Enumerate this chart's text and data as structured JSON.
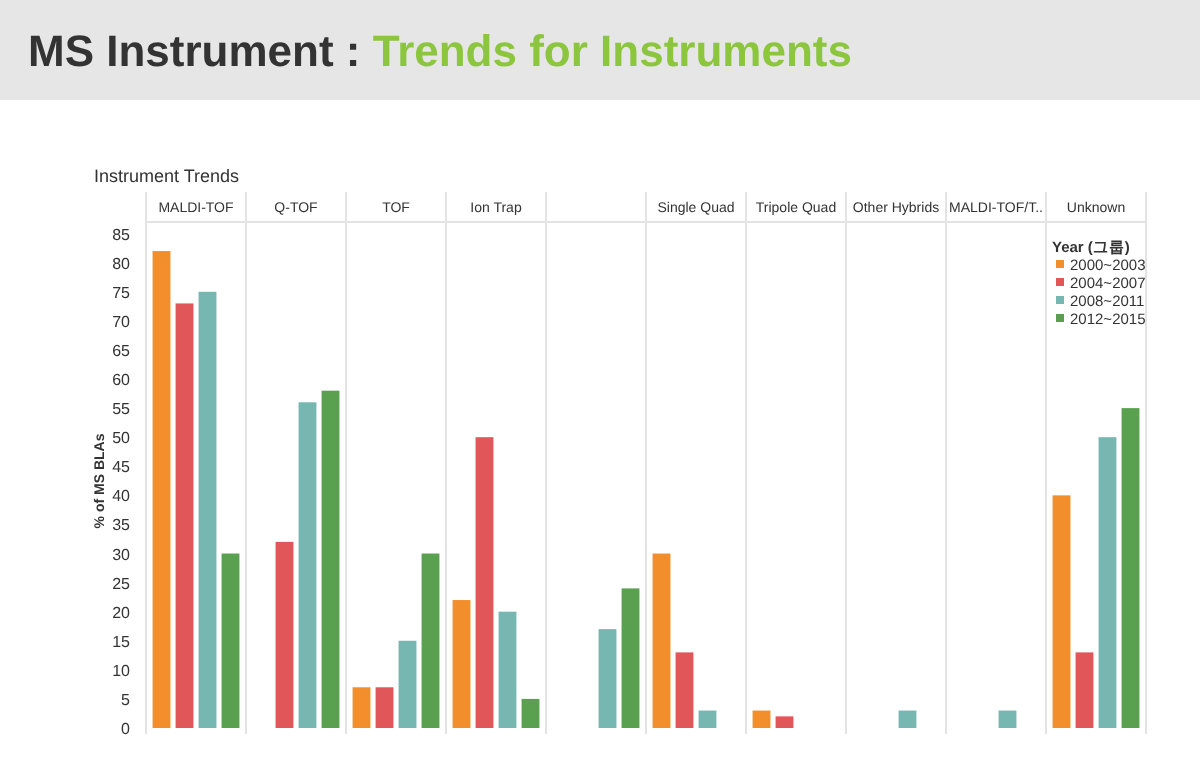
{
  "chart_data": {
    "type": "bar",
    "title": "MS Instrument :",
    "subtitle": "Trends for Instruments",
    "annotations": [
      "Instrument Trends"
    ],
    "ylabel": "% of MS BLAs",
    "legend_title": "Year (그룹)",
    "legend": "top right",
    "grid": false,
    "categories": [
      "MALDI-TOF",
      "Q-TOF",
      "TOF",
      "Ion Trap",
      null,
      "Single Quad",
      "Tripole Quad",
      "Other Hybrids",
      "MALDI-TOF/T..",
      "Unknown"
    ],
    "ylim": [
      0,
      87
    ],
    "yticks": [
      0,
      5,
      10,
      15,
      20,
      25,
      30,
      35,
      40,
      45,
      50,
      55,
      60,
      65,
      70,
      75,
      80,
      85
    ],
    "series": [
      {
        "name": "2000~2003",
        "color": "#f28e2b",
        "values": [
          82,
          null,
          7,
          22,
          null,
          30,
          3,
          null,
          null,
          40
        ]
      },
      {
        "name": "2004~2007",
        "color": "#e15759",
        "values": [
          73,
          32,
          7,
          50,
          null,
          13,
          2,
          null,
          null,
          13
        ]
      },
      {
        "name": "2008~2011",
        "color": "#76b7b2",
        "values": [
          75,
          56,
          15,
          20,
          17,
          3,
          null,
          3,
          3,
          50
        ]
      },
      {
        "name": "2012~2015",
        "color": "#59a14f",
        "values": [
          30,
          58,
          30,
          5,
          24,
          null,
          null,
          null,
          null,
          55
        ]
      }
    ]
  }
}
